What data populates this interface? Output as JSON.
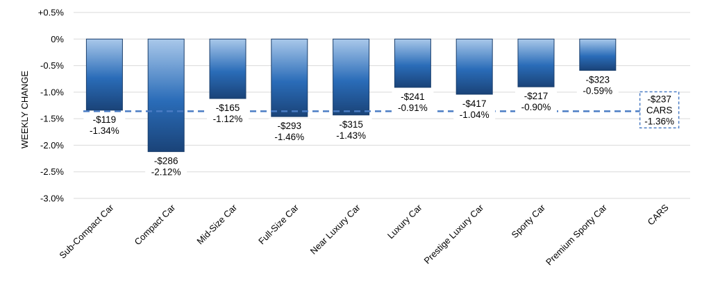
{
  "chart_data": {
    "type": "bar",
    "ylabel": "WEEKLY CHANGE",
    "ylim": [
      -3.0,
      0.5
    ],
    "yticks": [
      0.5,
      0,
      -0.5,
      -1.0,
      -1.5,
      -2.0,
      -2.5,
      -3.0
    ],
    "ytick_labels": [
      "+0.5%",
      "0%",
      "-0.5%",
      "-1.0%",
      "-1.5%",
      "-2.0%",
      "-2.5%",
      "-3.0%"
    ],
    "grid": true,
    "categories": [
      "Sub-Compact Car",
      "Compact Car",
      "Mid-Size Car",
      "Full-Size Car",
      "Near Luxury Car",
      "Luxury Car",
      "Prestige Luxury Car",
      "Sporty Car",
      "Premium Sporty Car",
      "CARS"
    ],
    "values": [
      -1.34,
      -2.12,
      -1.12,
      -1.46,
      -1.43,
      -0.91,
      -1.04,
      -0.9,
      -0.59,
      null
    ],
    "dollar_labels": [
      "-$119",
      "-$286",
      "-$165",
      "-$293",
      "-$315",
      "-$241",
      "-$417",
      "-$217",
      "-$323",
      "-$237"
    ],
    "percent_labels": [
      "-1.34%",
      "-2.12%",
      "-1.12%",
      "-1.46%",
      "-1.43%",
      "-0.91%",
      "-1.04%",
      "-0.90%",
      "-0.59%",
      "-1.36%"
    ],
    "reference_line": {
      "name": "CARS",
      "value": -1.36
    },
    "colors": {
      "bar_top": "#a9c8ea",
      "bar_mid": "#2a6cb8",
      "bar_bottom": "#1a4378",
      "bar_edge": "#1b3f6c",
      "reference": "#4a7cc4",
      "grid": "#d9d9d9"
    }
  }
}
